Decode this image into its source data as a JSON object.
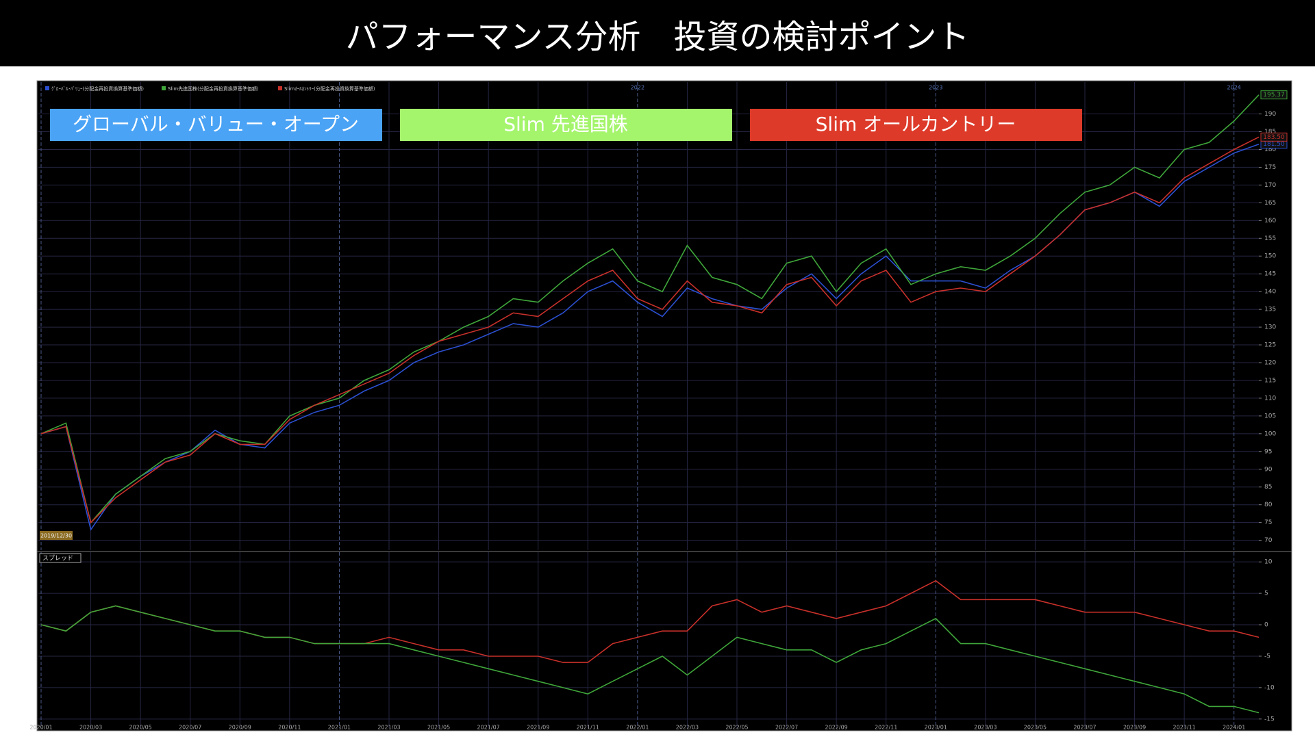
{
  "header": {
    "title": "パフォーマンス分析　投資の検討ポイント"
  },
  "chart_data": [
    {
      "type": "line",
      "header_labels": [
        "ｸﾞﾛｰﾊﾞﾙ･ﾊﾞﾘｭｰ(分配金再投資換算基準価額)",
        "Slim先進国株(分配金再投資換算基準価額)",
        "Slimｵｰﾙｶﾝﾄﾘｰ(分配金再投資換算基準価額)"
      ],
      "start_label": "2019/12/30",
      "year_markers": [
        {
          "x": "2022/01",
          "label": "2022"
        },
        {
          "x": "2023/01",
          "label": "2023"
        },
        {
          "x": "2024/01",
          "label": "2024"
        }
      ],
      "categories": [
        "2020/01",
        "2020/02",
        "2020/03",
        "2020/04",
        "2020/05",
        "2020/06",
        "2020/07",
        "2020/08",
        "2020/09",
        "2020/10",
        "2020/11",
        "2020/12",
        "2021/01",
        "2021/02",
        "2021/03",
        "2021/04",
        "2021/05",
        "2021/06",
        "2021/07",
        "2021/08",
        "2021/09",
        "2021/10",
        "2021/11",
        "2021/12",
        "2022/01",
        "2022/02",
        "2022/03",
        "2022/04",
        "2022/05",
        "2022/06",
        "2022/07",
        "2022/08",
        "2022/09",
        "2022/10",
        "2022/11",
        "2022/12",
        "2023/01",
        "2023/02",
        "2023/03",
        "2023/04",
        "2023/05",
        "2023/06",
        "2023/07",
        "2023/08",
        "2023/09",
        "2023/10",
        "2023/11",
        "2023/12",
        "2024/01",
        "2024/02"
      ],
      "series": [
        {
          "name": "グローバル・バリュー・オープン",
          "color": "#2b4fd0",
          "legend_color": "#4aa3f5",
          "end_label": "181.50",
          "values": [
            100,
            102,
            73,
            83,
            88,
            92,
            95,
            101,
            97,
            96,
            103,
            106,
            108,
            112,
            115,
            120,
            123,
            125,
            128,
            131,
            130,
            134,
            140,
            143,
            137,
            133,
            141,
            138,
            136,
            135,
            141,
            145,
            138,
            145,
            150,
            143,
            143,
            143,
            141,
            146,
            150,
            156,
            163,
            165,
            168,
            164,
            171,
            175,
            179,
            181.5
          ]
        },
        {
          "name": "Slim 先進国株",
          "color": "#3fa63a",
          "legend_color": "#a4f46c",
          "end_label": "195.37",
          "values": [
            100,
            103,
            75,
            83,
            88,
            93,
            95,
            100,
            98,
            97,
            105,
            108,
            110,
            115,
            118,
            123,
            126,
            130,
            133,
            138,
            137,
            143,
            148,
            152,
            143,
            140,
            153,
            144,
            142,
            138,
            148,
            150,
            140,
            148,
            152,
            142,
            145,
            147,
            146,
            150,
            155,
            162,
            168,
            170,
            175,
            172,
            180,
            182,
            188,
            195.37
          ]
        },
        {
          "name": "Slim オールカントリー",
          "color": "#c8302a",
          "legend_color": "#dd3a29",
          "end_label": "183.50",
          "values": [
            100,
            102,
            75,
            82,
            87,
            92,
            94,
            100,
            97,
            97,
            104,
            108,
            111,
            114,
            117,
            122,
            126,
            128,
            130,
            134,
            133,
            138,
            143,
            146,
            138,
            135,
            143,
            137,
            136,
            134,
            142,
            144,
            136,
            143,
            146,
            137,
            140,
            141,
            140,
            145,
            150,
            156,
            163,
            165,
            168,
            165,
            172,
            176,
            180,
            183.5
          ]
        }
      ],
      "xticks": [
        "2020/01",
        "2020/03",
        "2020/05",
        "2020/07",
        "2020/09",
        "2020/11",
        "2021/01",
        "2021/03",
        "2021/05",
        "2021/07",
        "2021/09",
        "2021/11",
        "2022/01",
        "2022/03",
        "2022/05",
        "2022/07",
        "2022/09",
        "2022/11",
        "2023/01",
        "2023/03",
        "2023/05",
        "2023/07",
        "2023/09",
        "2023/11",
        "2024/01"
      ],
      "ylim": [
        68,
        198
      ],
      "yticks": [
        70,
        75,
        80,
        85,
        90,
        95,
        100,
        105,
        110,
        115,
        120,
        125,
        130,
        135,
        140,
        145,
        150,
        155,
        160,
        165,
        170,
        175,
        180,
        185,
        190
      ],
      "grid": true
    },
    {
      "type": "line",
      "title": "スプレッド",
      "categories": [
        "2020/01",
        "2020/02",
        "2020/03",
        "2020/04",
        "2020/05",
        "2020/06",
        "2020/07",
        "2020/08",
        "2020/09",
        "2020/10",
        "2020/11",
        "2020/12",
        "2021/01",
        "2021/02",
        "2021/03",
        "2021/04",
        "2021/05",
        "2021/06",
        "2021/07",
        "2021/08",
        "2021/09",
        "2021/10",
        "2021/11",
        "2021/12",
        "2022/01",
        "2022/02",
        "2022/03",
        "2022/04",
        "2022/05",
        "2022/06",
        "2022/07",
        "2022/08",
        "2022/09",
        "2022/10",
        "2022/11",
        "2022/12",
        "2023/01",
        "2023/02",
        "2023/03",
        "2023/04",
        "2023/05",
        "2023/06",
        "2023/07",
        "2023/08",
        "2023/09",
        "2023/10",
        "2023/11",
        "2023/12",
        "2024/01",
        "2024/02"
      ],
      "series": [
        {
          "color": "#c8302a",
          "values": [
            0,
            -1,
            2,
            3,
            2,
            1,
            0,
            -1,
            -1,
            -2,
            -2,
            -3,
            -3,
            -3,
            -2,
            -3,
            -4,
            -4,
            -5,
            -5,
            -5,
            -6,
            -6,
            -3,
            -2,
            -1,
            -1,
            3,
            4,
            2,
            3,
            2,
            1,
            2,
            3,
            5,
            7,
            4,
            4,
            4,
            4,
            3,
            2,
            2,
            2,
            1,
            0,
            -1,
            -1,
            -2
          ]
        },
        {
          "color": "#3fa63a",
          "values": [
            0,
            -1,
            2,
            3,
            2,
            1,
            0,
            -1,
            -1,
            -2,
            -2,
            -3,
            -3,
            -3,
            -3,
            -4,
            -5,
            -6,
            -7,
            -8,
            -9,
            -10,
            -11,
            -9,
            -7,
            -5,
            -8,
            -5,
            -2,
            -3,
            -4,
            -4,
            -6,
            -4,
            -3,
            -1,
            1,
            -3,
            -3,
            -4,
            -5,
            -6,
            -7,
            -8,
            -9,
            -10,
            -11,
            -13,
            -13,
            -14
          ]
        }
      ],
      "xticks": [
        "2020/01",
        "2020/03",
        "2020/05",
        "2020/07",
        "2020/09",
        "2020/11",
        "2021/01",
        "2021/03",
        "2021/05",
        "2021/07",
        "2021/09",
        "2021/11",
        "2022/01",
        "2022/03",
        "2022/05",
        "2022/07",
        "2022/09",
        "2022/11",
        "2023/01",
        "2023/03",
        "2023/05",
        "2023/07",
        "2023/09",
        "2023/11",
        "2024/01"
      ],
      "ylim": [
        -16,
        11
      ],
      "yticks": [
        -15,
        -10,
        -5,
        0,
        5,
        10
      ],
      "grid": true
    }
  ]
}
